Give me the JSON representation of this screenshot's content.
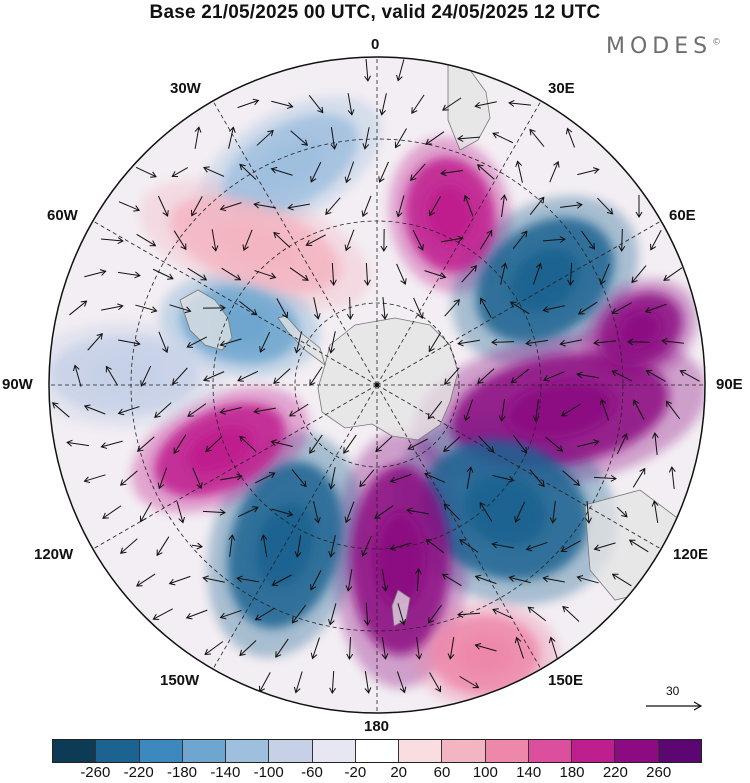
{
  "title": "Base 21/05/2025 00 UTC, valid 24/05/2025 12 UTC",
  "brand": "MODES",
  "brand_mark": "©",
  "lon_labels": {
    "top": "0",
    "top_right": "30E",
    "right_upper": "60E",
    "right": "90E",
    "right_lower": "120E",
    "bottom_right": "150E",
    "bottom": "180",
    "bottom_left": "150W",
    "left_lower": "120W",
    "left": "90W",
    "left_upper": "60W",
    "top_left": "30W"
  },
  "vector_scale_label": "30",
  "colorbar": {
    "colors": [
      "#0d3a55",
      "#1c6391",
      "#3d88bd",
      "#6ea6cf",
      "#9fbfdf",
      "#c6d1e7",
      "#e6e7f3",
      "#ffffff",
      "#f9dde0",
      "#f4b5c2",
      "#ee88aa",
      "#dc4f9f",
      "#bf1e8e",
      "#8c0a82",
      "#5c0671"
    ],
    "ticks": [
      "-260",
      "-220",
      "-180",
      "-140",
      "-100",
      "-60",
      "-20",
      "20",
      "60",
      "100",
      "140",
      "180",
      "220",
      "260"
    ]
  },
  "anomaly_blobs": [
    {
      "name": "blob-blue-30w",
      "color": "#9fbfdf"
    },
    {
      "name": "blob-pink-50w",
      "color": "#f4b5c2"
    },
    {
      "name": "blob-blue-60w",
      "color": "#6ea6cf"
    },
    {
      "name": "blob-pink-20e",
      "color": "#bf1e8e"
    },
    {
      "name": "blob-blue-55e",
      "color": "#1c6391"
    },
    {
      "name": "blob-purple-95e",
      "color": "#8c0a82"
    },
    {
      "name": "blob-blue-130e",
      "color": "#1c6391"
    },
    {
      "name": "blob-purple-170e",
      "color": "#8c0a82"
    },
    {
      "name": "blob-blue-150w",
      "color": "#1c6391"
    },
    {
      "name": "blob-purple-110w",
      "color": "#bf1e8e"
    },
    {
      "name": "blob-blue-80w",
      "color": "#c6d1e7"
    },
    {
      "name": "blob-pink-165e",
      "color": "#ee88aa"
    }
  ],
  "land_color": "#e4e4e4",
  "land_outline_color": "#777777",
  "grid_color": "#222222"
}
